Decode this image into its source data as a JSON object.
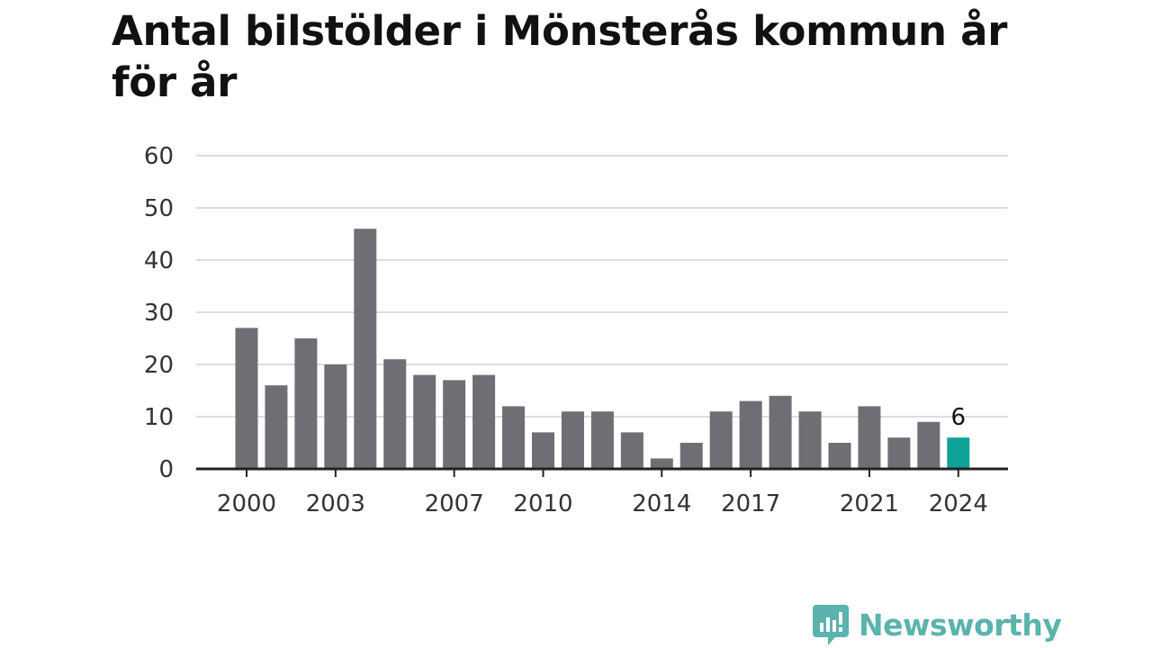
{
  "chart_data": {
    "type": "bar",
    "title": "Antal bilstölder i Mönsterås kommun år för år",
    "xlabel": "",
    "ylabel": "",
    "categories": [
      "2000",
      "2001",
      "2002",
      "2003",
      "2004",
      "2005",
      "2006",
      "2007",
      "2008",
      "2009",
      "2010",
      "2011",
      "2012",
      "2013",
      "2014",
      "2015",
      "2016",
      "2017",
      "2018",
      "2019",
      "2020",
      "2021",
      "2022",
      "2023",
      "2024"
    ],
    "values": [
      27,
      16,
      25,
      20,
      46,
      21,
      18,
      17,
      18,
      12,
      7,
      11,
      11,
      7,
      2,
      5,
      11,
      13,
      14,
      11,
      5,
      12,
      6,
      9,
      6
    ],
    "ylim": [
      0,
      60
    ],
    "yticks": [
      0,
      10,
      20,
      30,
      40,
      50,
      60
    ],
    "xticks": [
      "2000",
      "2003",
      "2007",
      "2010",
      "2014",
      "2017",
      "2021",
      "2024"
    ],
    "highlight": {
      "category": "2024",
      "label": "6"
    },
    "grid": true,
    "legend": "none",
    "colors": {
      "bar": "#6f6e75",
      "highlight": "#0fa39a",
      "grid": "#dddddd",
      "axis": "#222222"
    }
  },
  "brand": {
    "name": "Newsworthy",
    "icon": "newsworthy-logo-icon",
    "color": "#5bb3ad"
  }
}
